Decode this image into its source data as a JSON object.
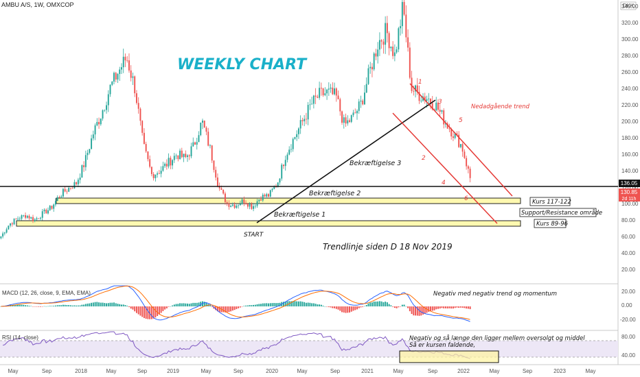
{
  "header": {
    "symbol": "AMBU A/S, 1W, OMXCOP",
    "currency": "DKK"
  },
  "chart_data": {
    "type": "candlestick",
    "price_axis_ticks": [
      20,
      40,
      60,
      80,
      100,
      120,
      140,
      160,
      180,
      200,
      220,
      240,
      260,
      280,
      300,
      320,
      340
    ],
    "price_axis_labels": [
      "20.00",
      "40.00",
      "60.00",
      "80.00",
      "100.00",
      "120.00",
      "140.00",
      "160.00",
      "180.00",
      "200.00",
      "220.00",
      "240.00",
      "260.00",
      "280.00",
      "300.00",
      "320.00",
      "340.00"
    ],
    "time_axis_labels": [
      "May",
      "Sep",
      "2018",
      "May",
      "Sep",
      "2019",
      "May",
      "Sep",
      "2020",
      "May",
      "Sep",
      "2021",
      "May",
      "Sep",
      "2022",
      "May",
      "Sep",
      "2023",
      "May"
    ],
    "last_price_label": "130.85",
    "countdown_label": "2d 11h",
    "horizontal_level_label": "136.05",
    "close_path": [
      [
        "2017-05",
        60
      ],
      [
        "2017-06",
        75
      ],
      [
        "2017-07",
        82
      ],
      [
        "2017-08",
        86
      ],
      [
        "2017-09",
        80
      ],
      [
        "2017-10",
        88
      ],
      [
        "2017-11",
        95
      ],
      [
        "2017-12",
        110
      ],
      [
        "2018-01",
        118
      ],
      [
        "2018-02",
        125
      ],
      [
        "2018-03",
        150
      ],
      [
        "2018-04",
        185
      ],
      [
        "2018-05",
        210
      ],
      [
        "2018-06",
        240
      ],
      [
        "2018-07",
        260
      ],
      [
        "2018-08",
        278
      ],
      [
        "2018-09",
        240
      ],
      [
        "2018-10",
        170
      ],
      [
        "2018-11",
        135
      ],
      [
        "2018-12",
        140
      ],
      [
        "2019-01",
        150
      ],
      [
        "2019-02",
        160
      ],
      [
        "2019-03",
        155
      ],
      [
        "2019-04",
        170
      ],
      [
        "2019-05",
        200
      ],
      [
        "2019-06",
        165
      ],
      [
        "2019-07",
        120
      ],
      [
        "2019-08",
        100
      ],
      [
        "2019-09",
        98
      ],
      [
        "2019-10",
        104
      ],
      [
        "2019-11",
        96
      ],
      [
        "2019-12",
        108
      ],
      [
        "2020-01",
        110
      ],
      [
        "2020-02",
        125
      ],
      [
        "2020-03",
        160
      ],
      [
        "2020-04",
        180
      ],
      [
        "2020-05",
        200
      ],
      [
        "2020-06",
        220
      ],
      [
        "2020-07",
        232
      ],
      [
        "2020-08",
        235
      ],
      [
        "2020-09",
        230
      ],
      [
        "2020-10",
        195
      ],
      [
        "2020-11",
        205
      ],
      [
        "2020-12",
        222
      ],
      [
        "2021-01",
        260
      ],
      [
        "2021-02",
        295
      ],
      [
        "2021-03",
        310
      ],
      [
        "2021-04",
        280
      ],
      [
        "2021-05",
        340
      ],
      [
        "2021-06",
        240
      ],
      [
        "2021-07",
        232
      ],
      [
        "2021-08",
        228
      ],
      [
        "2021-09",
        218
      ],
      [
        "2021-10",
        200
      ],
      [
        "2021-11",
        185
      ],
      [
        "2021-12",
        170
      ],
      [
        "2022-01",
        131
      ]
    ],
    "annotations": {
      "title": "WEEKLY CHART",
      "trend_title": "Nedadgående trend",
      "confirm1": "Bekræftigelse 1",
      "confirm2": "Bekræftigelse 2",
      "confirm3": "Bekræftigelse 3",
      "start": "START",
      "trendline_note": "Trendlinje siden D 18 Nov 2019",
      "zone_upper": "Kurs 117-122",
      "zone_lower": "Kurs 89-96",
      "zone_note": "Support/Resistance område",
      "wave_points": [
        "1",
        "2",
        "3",
        "4",
        "5",
        "6"
      ]
    },
    "macd": {
      "label": "MACD (12, 26, close, 9, EMA, EMA)",
      "ticks": [
        "20.00",
        "0.00",
        "-20.00"
      ],
      "note": "Negativ med negativ trend og momentum"
    },
    "rsi": {
      "label": "RSI (14, close)",
      "ticks": [
        "80.00",
        "40.00"
      ],
      "note_line1": "Negativ og så længe den ligger mellem oversolgt og middel",
      "note_line2": "Så er kursen faldende,"
    },
    "colors": {
      "up": "#26a69a",
      "down": "#ef5350",
      "zone": "#fff9b0",
      "title": "#1ab0c9",
      "trend": "#e53935"
    }
  }
}
